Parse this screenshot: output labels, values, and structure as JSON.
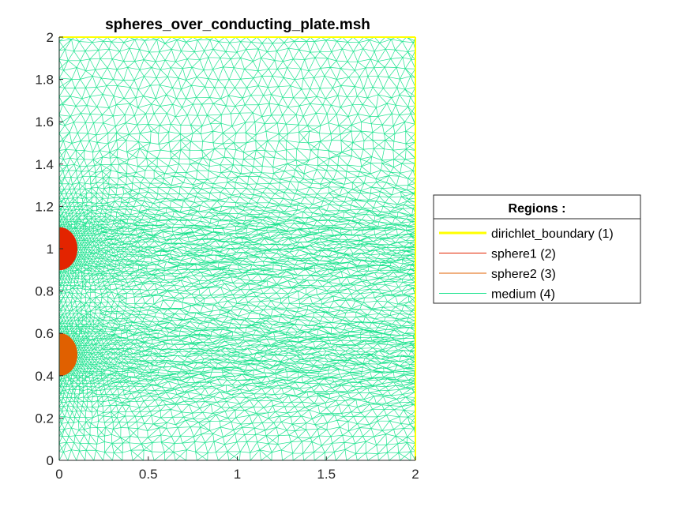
{
  "chart_data": {
    "type": "mesh",
    "title": "spheres_over_conducting_plate.msh",
    "xlabel": "",
    "ylabel": "",
    "xlim": [
      0,
      2
    ],
    "ylim": [
      0,
      2
    ],
    "x_ticks": [
      0,
      0.5,
      1,
      1.5,
      2
    ],
    "x_tick_labels": [
      "0",
      "0.5",
      "1",
      "1.5",
      "2"
    ],
    "y_ticks": [
      0,
      0.2,
      0.4,
      0.6,
      0.8,
      1,
      1.2,
      1.4,
      1.6,
      1.8,
      2
    ],
    "y_tick_labels": [
      "0",
      "0.2",
      "0.4",
      "0.6",
      "0.8",
      "1",
      "1.2",
      "1.4",
      "1.6",
      "1.8",
      "2"
    ],
    "grid": false,
    "legend": {
      "title": "Regions :",
      "placement": "east-outside",
      "entries": [
        {
          "label": "dirichlet_boundary (1)",
          "color": "#ffff00",
          "thick": true
        },
        {
          "label": "sphere1 (2)",
          "color": "#e32400",
          "thick": false
        },
        {
          "label": "sphere2 (3)",
          "color": "#e06000",
          "thick": false
        },
        {
          "label": "medium (4)",
          "color": "#1ee38f",
          "thick": false
        }
      ]
    },
    "regions": [
      {
        "name": "sphere1 (2)",
        "shape": "half-disc",
        "center": [
          0,
          1.0
        ],
        "radius": 0.1,
        "color": "#e32400"
      },
      {
        "name": "sphere2 (3)",
        "shape": "half-disc",
        "center": [
          0,
          0.5
        ],
        "radius": 0.1,
        "color": "#e06000"
      }
    ],
    "boundary": {
      "name": "dirichlet_boundary (1)",
      "segments": [
        [
          [
            2,
            0
          ],
          [
            2,
            2
          ]
        ],
        [
          [
            0,
            2
          ],
          [
            2,
            2
          ]
        ]
      ],
      "color": "#ffff00"
    },
    "medium": {
      "name": "medium (4)",
      "color": "#1ee38f",
      "domain": [
        [
          0,
          0
        ],
        [
          2,
          2
        ]
      ]
    }
  }
}
